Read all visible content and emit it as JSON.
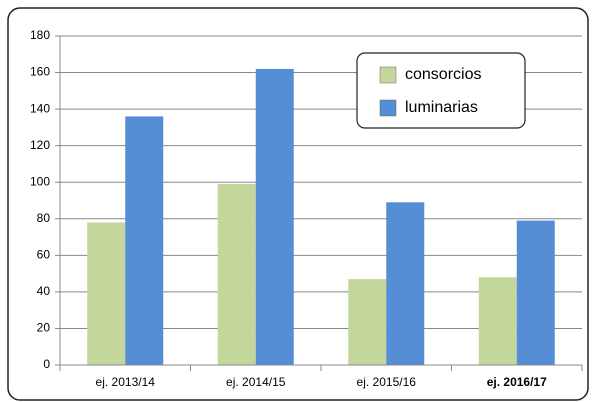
{
  "chart_data": {
    "type": "bar",
    "categories": [
      "ej. 2013/14",
      "ej. 2014/15",
      "ej. 2015/16",
      "ej. 2016/17"
    ],
    "series": [
      {
        "name": "consorcios",
        "color": "#c3d69b",
        "values": [
          78,
          99,
          47,
          48
        ]
      },
      {
        "name": "luminarias",
        "color": "#558ed5",
        "values": [
          136,
          162,
          89,
          79
        ]
      }
    ],
    "ylim": [
      0,
      180
    ],
    "yticks": [
      0,
      20,
      40,
      60,
      80,
      100,
      120,
      140,
      160,
      180
    ],
    "grid": true,
    "legend": "top-right",
    "bold_category_index": 3
  }
}
